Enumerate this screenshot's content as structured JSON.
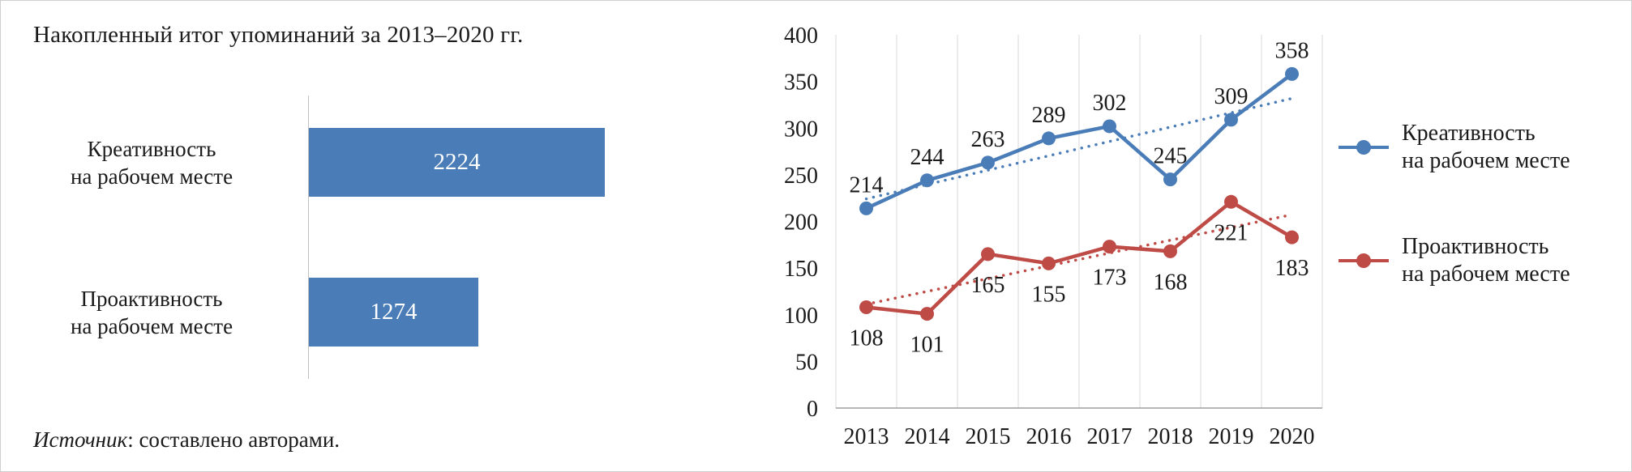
{
  "figure": {
    "background": "#ffffff",
    "border_color": "#cfcfcf",
    "text_color": "#1a1a1a",
    "grid_color": "#d9d9d9",
    "axis_color": "#9e9e9e"
  },
  "bar_panel": {
    "title": "Накопленный итог упоминаний за 2013–2020 гг.",
    "source": {
      "prefix_italic": "Источник",
      "rest": ": составлено авторами."
    }
  },
  "chart_data": [
    {
      "type": "bar",
      "orientation": "horizontal",
      "title": "Накопленный итог упоминаний за 2013–2020 гг.",
      "categories": [
        [
          "Креативность",
          "на рабочем месте"
        ],
        [
          "Проактивность",
          "на рабочем месте"
        ]
      ],
      "values": [
        2224,
        1274
      ],
      "xlim": [
        0,
        2224
      ],
      "bar_color": "#4a7db8",
      "value_label_color": "#ffffff",
      "grid": "off"
    },
    {
      "type": "line",
      "x_labels": [
        "2013",
        "2014",
        "2015",
        "2016",
        "2017",
        "2018",
        "2019",
        "2020"
      ],
      "yticks": [
        0,
        50,
        100,
        150,
        200,
        250,
        300,
        350,
        400
      ],
      "ylim": [
        0,
        400
      ],
      "grid": "vertical",
      "legend_position": "right",
      "series": [
        {
          "name_lines": [
            "Креативность",
            "на рабочем месте"
          ],
          "values": [
            214,
            244,
            263,
            289,
            302,
            245,
            309,
            358
          ],
          "color": "#4a7db8",
          "label_position": "above",
          "trendline": "linear-dotted"
        },
        {
          "name_lines": [
            "Проактивность",
            "на рабочем месте"
          ],
          "values": [
            108,
            101,
            165,
            155,
            173,
            168,
            221,
            183
          ],
          "color": "#bf4b47",
          "label_position": "below",
          "trendline": "linear-dotted"
        }
      ]
    }
  ]
}
